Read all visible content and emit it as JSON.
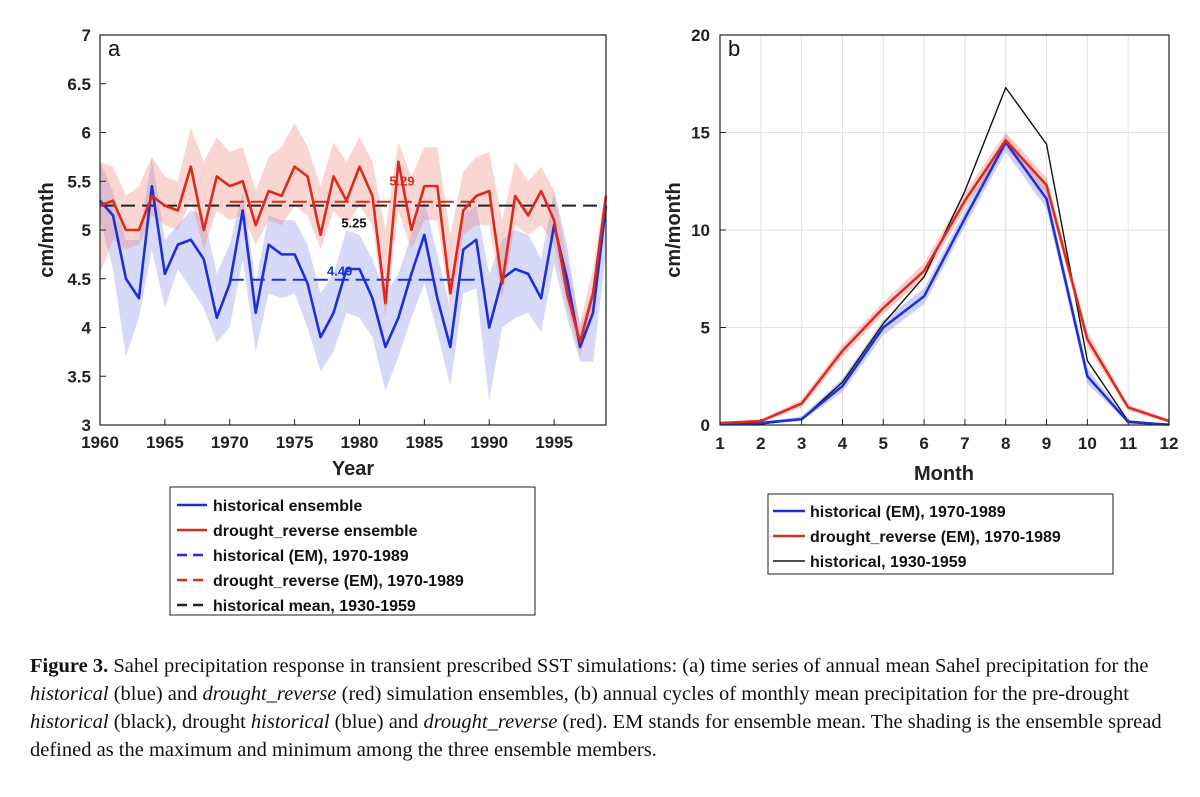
{
  "chart_data": [
    {
      "type": "line",
      "panel_label": "a",
      "xlabel": "Year",
      "ylabel": "cm/month",
      "xlim": [
        1960,
        1999
      ],
      "ylim": [
        3,
        7
      ],
      "xticks": [
        1960,
        1965,
        1970,
        1975,
        1980,
        1985,
        1990,
        1995
      ],
      "yticks": [
        3,
        3.5,
        4,
        4.5,
        5,
        5.5,
        6,
        6.5,
        7
      ],
      "ytick_labels": [
        "3",
        "3.5",
        "4",
        "4.5",
        "5",
        "5.5",
        "6",
        "6.5",
        "7"
      ],
      "x": [
        1960,
        1961,
        1962,
        1963,
        1964,
        1965,
        1966,
        1967,
        1968,
        1969,
        1970,
        1971,
        1972,
        1973,
        1974,
        1975,
        1976,
        1977,
        1978,
        1979,
        1980,
        1981,
        1982,
        1983,
        1984,
        1985,
        1986,
        1987,
        1988,
        1989,
        1990,
        1991,
        1992,
        1993,
        1994,
        1995,
        1996,
        1997,
        1998,
        1999
      ],
      "series": [
        {
          "name": "historical ensemble",
          "color": "#1f2fd6",
          "values": [
            5.3,
            5.15,
            4.5,
            4.3,
            5.45,
            4.55,
            4.85,
            4.9,
            4.7,
            4.1,
            4.45,
            5.2,
            4.15,
            4.85,
            4.75,
            4.75,
            4.45,
            3.9,
            4.15,
            4.6,
            4.6,
            4.3,
            3.8,
            4.1,
            4.55,
            4.95,
            4.3,
            3.8,
            4.8,
            4.9,
            4.0,
            4.5,
            4.6,
            4.55,
            4.3,
            5.05,
            4.5,
            3.8,
            4.15,
            5.25
          ],
          "lower": [
            5.1,
            4.6,
            3.7,
            4.1,
            4.8,
            4.2,
            4.6,
            4.4,
            4.2,
            3.85,
            4.0,
            4.7,
            3.75,
            4.35,
            4.3,
            4.35,
            4.0,
            3.55,
            3.75,
            4.15,
            4.1,
            3.9,
            3.35,
            3.7,
            4.1,
            4.45,
            3.95,
            3.4,
            4.35,
            4.4,
            3.25,
            4.0,
            4.1,
            4.15,
            3.95,
            4.65,
            4.1,
            3.65,
            3.65,
            4.75
          ],
          "upper": [
            5.7,
            5.4,
            4.9,
            4.9,
            5.75,
            4.9,
            5.05,
            5.2,
            5.15,
            4.55,
            4.85,
            5.4,
            4.45,
            5.15,
            5.1,
            5.1,
            4.85,
            4.35,
            4.55,
            5.0,
            4.95,
            4.7,
            4.35,
            4.55,
            4.95,
            5.3,
            4.75,
            4.2,
            5.15,
            5.25,
            4.55,
            4.9,
            5.0,
            4.95,
            4.7,
            5.4,
            4.85,
            4.0,
            4.4,
            5.45
          ]
        },
        {
          "name": "drought_reverse ensemble",
          "color": "#dd2a1e",
          "values": [
            5.25,
            5.3,
            5.0,
            5.0,
            5.35,
            5.25,
            5.2,
            5.65,
            5.0,
            5.55,
            5.45,
            5.5,
            5.05,
            5.4,
            5.35,
            5.65,
            5.55,
            4.95,
            5.55,
            5.3,
            5.65,
            5.35,
            4.25,
            5.7,
            5.0,
            5.45,
            5.45,
            4.35,
            5.2,
            5.35,
            5.4,
            4.45,
            5.35,
            5.15,
            5.4,
            5.1,
            4.35,
            3.85,
            4.35,
            5.35
          ],
          "lower": [
            4.55,
            4.9,
            4.8,
            4.85,
            5.15,
            5.05,
            5.0,
            5.3,
            4.8,
            5.2,
            5.1,
            5.15,
            4.85,
            5.1,
            5.05,
            5.25,
            5.15,
            4.8,
            5.2,
            5.05,
            5.25,
            5.05,
            4.1,
            5.2,
            4.8,
            5.1,
            5.1,
            4.2,
            4.95,
            5.05,
            5.05,
            4.3,
            5.05,
            4.95,
            5.05,
            4.85,
            4.2,
            3.7,
            4.2,
            5.15
          ],
          "upper": [
            5.7,
            5.65,
            5.35,
            5.45,
            5.75,
            5.55,
            5.5,
            6.05,
            5.7,
            5.95,
            5.8,
            5.85,
            5.4,
            5.75,
            5.85,
            6.1,
            5.85,
            5.45,
            5.9,
            5.7,
            5.95,
            5.7,
            5.0,
            5.9,
            5.55,
            5.85,
            5.85,
            4.95,
            5.6,
            5.75,
            5.8,
            5.1,
            5.7,
            5.5,
            5.65,
            5.4,
            4.7,
            4.05,
            4.6,
            5.45
          ]
        }
      ],
      "reference_lines": [
        {
          "name": "historical (EM), 1970-1989",
          "color": "#1f2fd6",
          "style": "dashed",
          "value": 4.49,
          "x_range": [
            1970,
            1989
          ],
          "label": "4.49"
        },
        {
          "name": "drought_reverse (EM), 1970-1989",
          "color": "#dd2a1e",
          "style": "dashed",
          "value": 5.29,
          "x_range": [
            1970,
            1989
          ],
          "label": "5.29"
        },
        {
          "name": "historical mean, 1930-1959",
          "color": "#222222",
          "style": "dashed",
          "value": 5.25,
          "x_range": [
            1960,
            1999
          ],
          "label": "5.25"
        }
      ],
      "legend": [
        {
          "label": "historical ensemble",
          "color": "#1f2fd6",
          "style": "solid"
        },
        {
          "label": "drought_reverse ensemble",
          "color": "#dd2a1e",
          "style": "solid"
        },
        {
          "label": "historical (EM), 1970-1989",
          "color": "#1f2fd6",
          "style": "dashed"
        },
        {
          "label": "drought_reverse (EM), 1970-1989",
          "color": "#dd2a1e",
          "style": "dashed"
        },
        {
          "label": "historical mean, 1930-1959",
          "color": "#222222",
          "style": "dashed"
        }
      ],
      "legend_position": "below"
    },
    {
      "type": "line",
      "panel_label": "b",
      "xlabel": "Month",
      "ylabel": "cm/month",
      "xlim": [
        1,
        12
      ],
      "ylim": [
        0,
        20
      ],
      "xticks": [
        1,
        2,
        3,
        4,
        5,
        6,
        7,
        8,
        9,
        10,
        11,
        12
      ],
      "yticks": [
        0,
        5,
        10,
        15,
        20
      ],
      "x": [
        1,
        2,
        3,
        4,
        5,
        6,
        7,
        8,
        9,
        10,
        11,
        12
      ],
      "grid": true,
      "series": [
        {
          "name": "historical (EM), 1970-1989",
          "color": "#1f2fd6",
          "width": 2.5,
          "values": [
            0.05,
            0.1,
            0.3,
            2.0,
            5.0,
            6.6,
            10.6,
            14.5,
            11.6,
            2.5,
            0.15,
            0.02
          ],
          "lower": [
            0.0,
            0.05,
            0.2,
            1.7,
            4.6,
            6.2,
            10.2,
            14.0,
            11.1,
            2.1,
            0.1,
            0.0
          ],
          "upper": [
            0.1,
            0.15,
            0.45,
            2.4,
            5.4,
            7.0,
            11.0,
            14.9,
            12.1,
            2.9,
            0.25,
            0.05
          ]
        },
        {
          "name": "drought_reverse (EM), 1970-1989",
          "color": "#dd2a1e",
          "width": 2.5,
          "values": [
            0.1,
            0.2,
            1.1,
            3.8,
            6.0,
            7.9,
            11.5,
            14.6,
            12.3,
            4.4,
            0.9,
            0.2
          ],
          "lower": [
            0.05,
            0.15,
            0.9,
            3.5,
            5.7,
            7.5,
            11.1,
            14.2,
            11.9,
            4.0,
            0.75,
            0.1
          ],
          "upper": [
            0.15,
            0.3,
            1.3,
            4.1,
            6.3,
            8.3,
            11.9,
            15.0,
            12.7,
            4.8,
            1.05,
            0.3
          ]
        },
        {
          "name": "historical, 1930-1959",
          "color": "#111111",
          "width": 1.4,
          "values": [
            0.02,
            0.05,
            0.3,
            2.2,
            5.2,
            7.6,
            12.0,
            17.3,
            14.4,
            3.3,
            0.2,
            0.02
          ]
        }
      ],
      "legend": [
        {
          "label": "historical (EM), 1970-1989",
          "color": "#1f2fd6",
          "width": 2.5
        },
        {
          "label": "drought_reverse (EM), 1970-1989",
          "color": "#dd2a1e",
          "width": 2.5
        },
        {
          "label": "historical, 1930-1959",
          "color": "#111111",
          "width": 1.4
        }
      ],
      "legend_position": "below"
    }
  ],
  "caption": {
    "figure_label": "Figure 3.",
    "text_before_hist": " Sahel precipitation response in transient prescribed SST simulations: (a) time series of annual mean Sahel precipitation for the ",
    "em_historical": "historical",
    "text_blue_and": " (blue) and ",
    "em_drought_reverse": "drought_reverse",
    "text_red_ensembles": " (red) simulation ensembles, (b) annual cycles of monthly mean precipitation for the pre-drought ",
    "em_historical_2": "historical",
    "text_black_drought": " (black), drought ",
    "em_historical_3": "historical",
    "text_blue_and_2": " (blue) and ",
    "em_drought_reverse_2": "drought_reverse",
    "text_end": " (red). EM stands for ensemble mean. The shading is the ensemble spread defined as the maximum and minimum among the three ensemble members."
  }
}
